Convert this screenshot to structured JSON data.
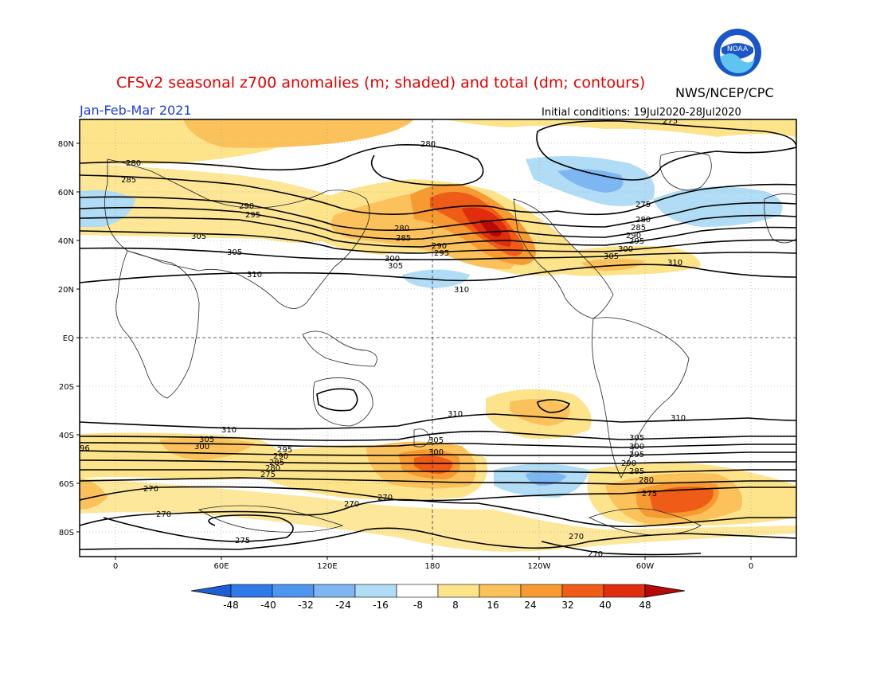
{
  "header": {
    "title": "CFSv2 seasonal z700 anomalies (m; shaded) and total (dm; contours)",
    "agency": "NWS/NCEP/CPC",
    "period": "Jan-Feb-Mar 2021",
    "initial_conditions": "Initial conditions: 19Jul2020-28Jul2020",
    "logo_text": "NOAA"
  },
  "map": {
    "lat_ticks": [
      "80N",
      "60N",
      "40N",
      "20N",
      "EQ",
      "20S",
      "40S",
      "60S",
      "80S"
    ],
    "lon_ticks": [
      "0",
      "60E",
      "120E",
      "180",
      "120W",
      "60W",
      "0"
    ],
    "contour_labels": [
      "280",
      "285",
      "290",
      "295",
      "300",
      "305",
      "310",
      "280",
      "285",
      "290",
      "295",
      "300",
      "305",
      "310",
      "275",
      "280",
      "285",
      "290",
      "295",
      "300",
      "305",
      "310",
      "310",
      "310",
      "305",
      "300",
      "295",
      "290",
      "285",
      "280",
      "275",
      "270",
      "270",
      "270",
      "270",
      "275",
      "270",
      "270",
      "96",
      "305",
      "300",
      "305",
      "300",
      "295",
      "290",
      "285",
      "280",
      "275",
      "270"
    ]
  },
  "colorbar": {
    "labels": [
      "-48",
      "-40",
      "-32",
      "-24",
      "-16",
      "-8",
      "8",
      "16",
      "24",
      "32",
      "40",
      "48"
    ],
    "colors": [
      "#1e5fd6",
      "#2f7ae8",
      "#4d95ee",
      "#7db6f2",
      "#b0dcf5",
      "#ffffff",
      "#fde38a",
      "#fbc25c",
      "#f79a32",
      "#ee5c17",
      "#e02d0e",
      "#b50a06"
    ]
  }
}
